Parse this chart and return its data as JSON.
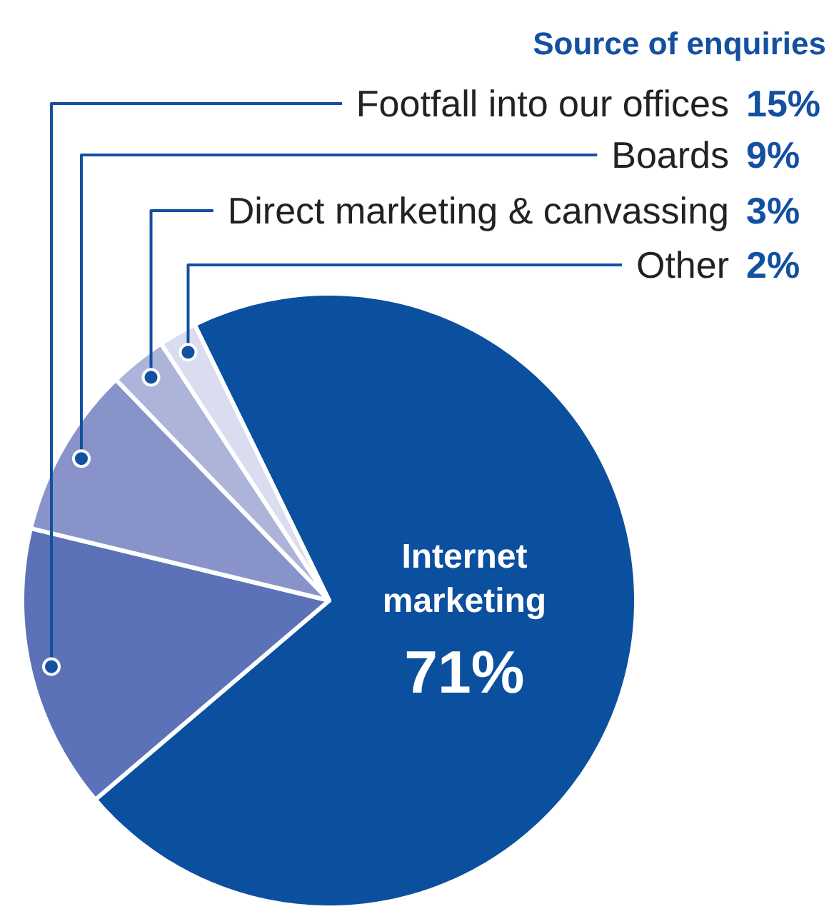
{
  "chart_data": {
    "type": "pie",
    "title": "Source of enquiries",
    "categories": [
      "Internet marketing",
      "Footfall into our offices",
      "Boards",
      "Direct marketing & canvassing",
      "Other"
    ],
    "values": [
      71,
      15,
      9,
      3,
      2
    ],
    "value_labels": [
      "71%",
      "15%",
      "9%",
      "3%",
      "2%"
    ],
    "colors": [
      "#0b4f9f",
      "#5b72b8",
      "#8894c9",
      "#acb4da",
      "#d9ddef"
    ]
  }
}
